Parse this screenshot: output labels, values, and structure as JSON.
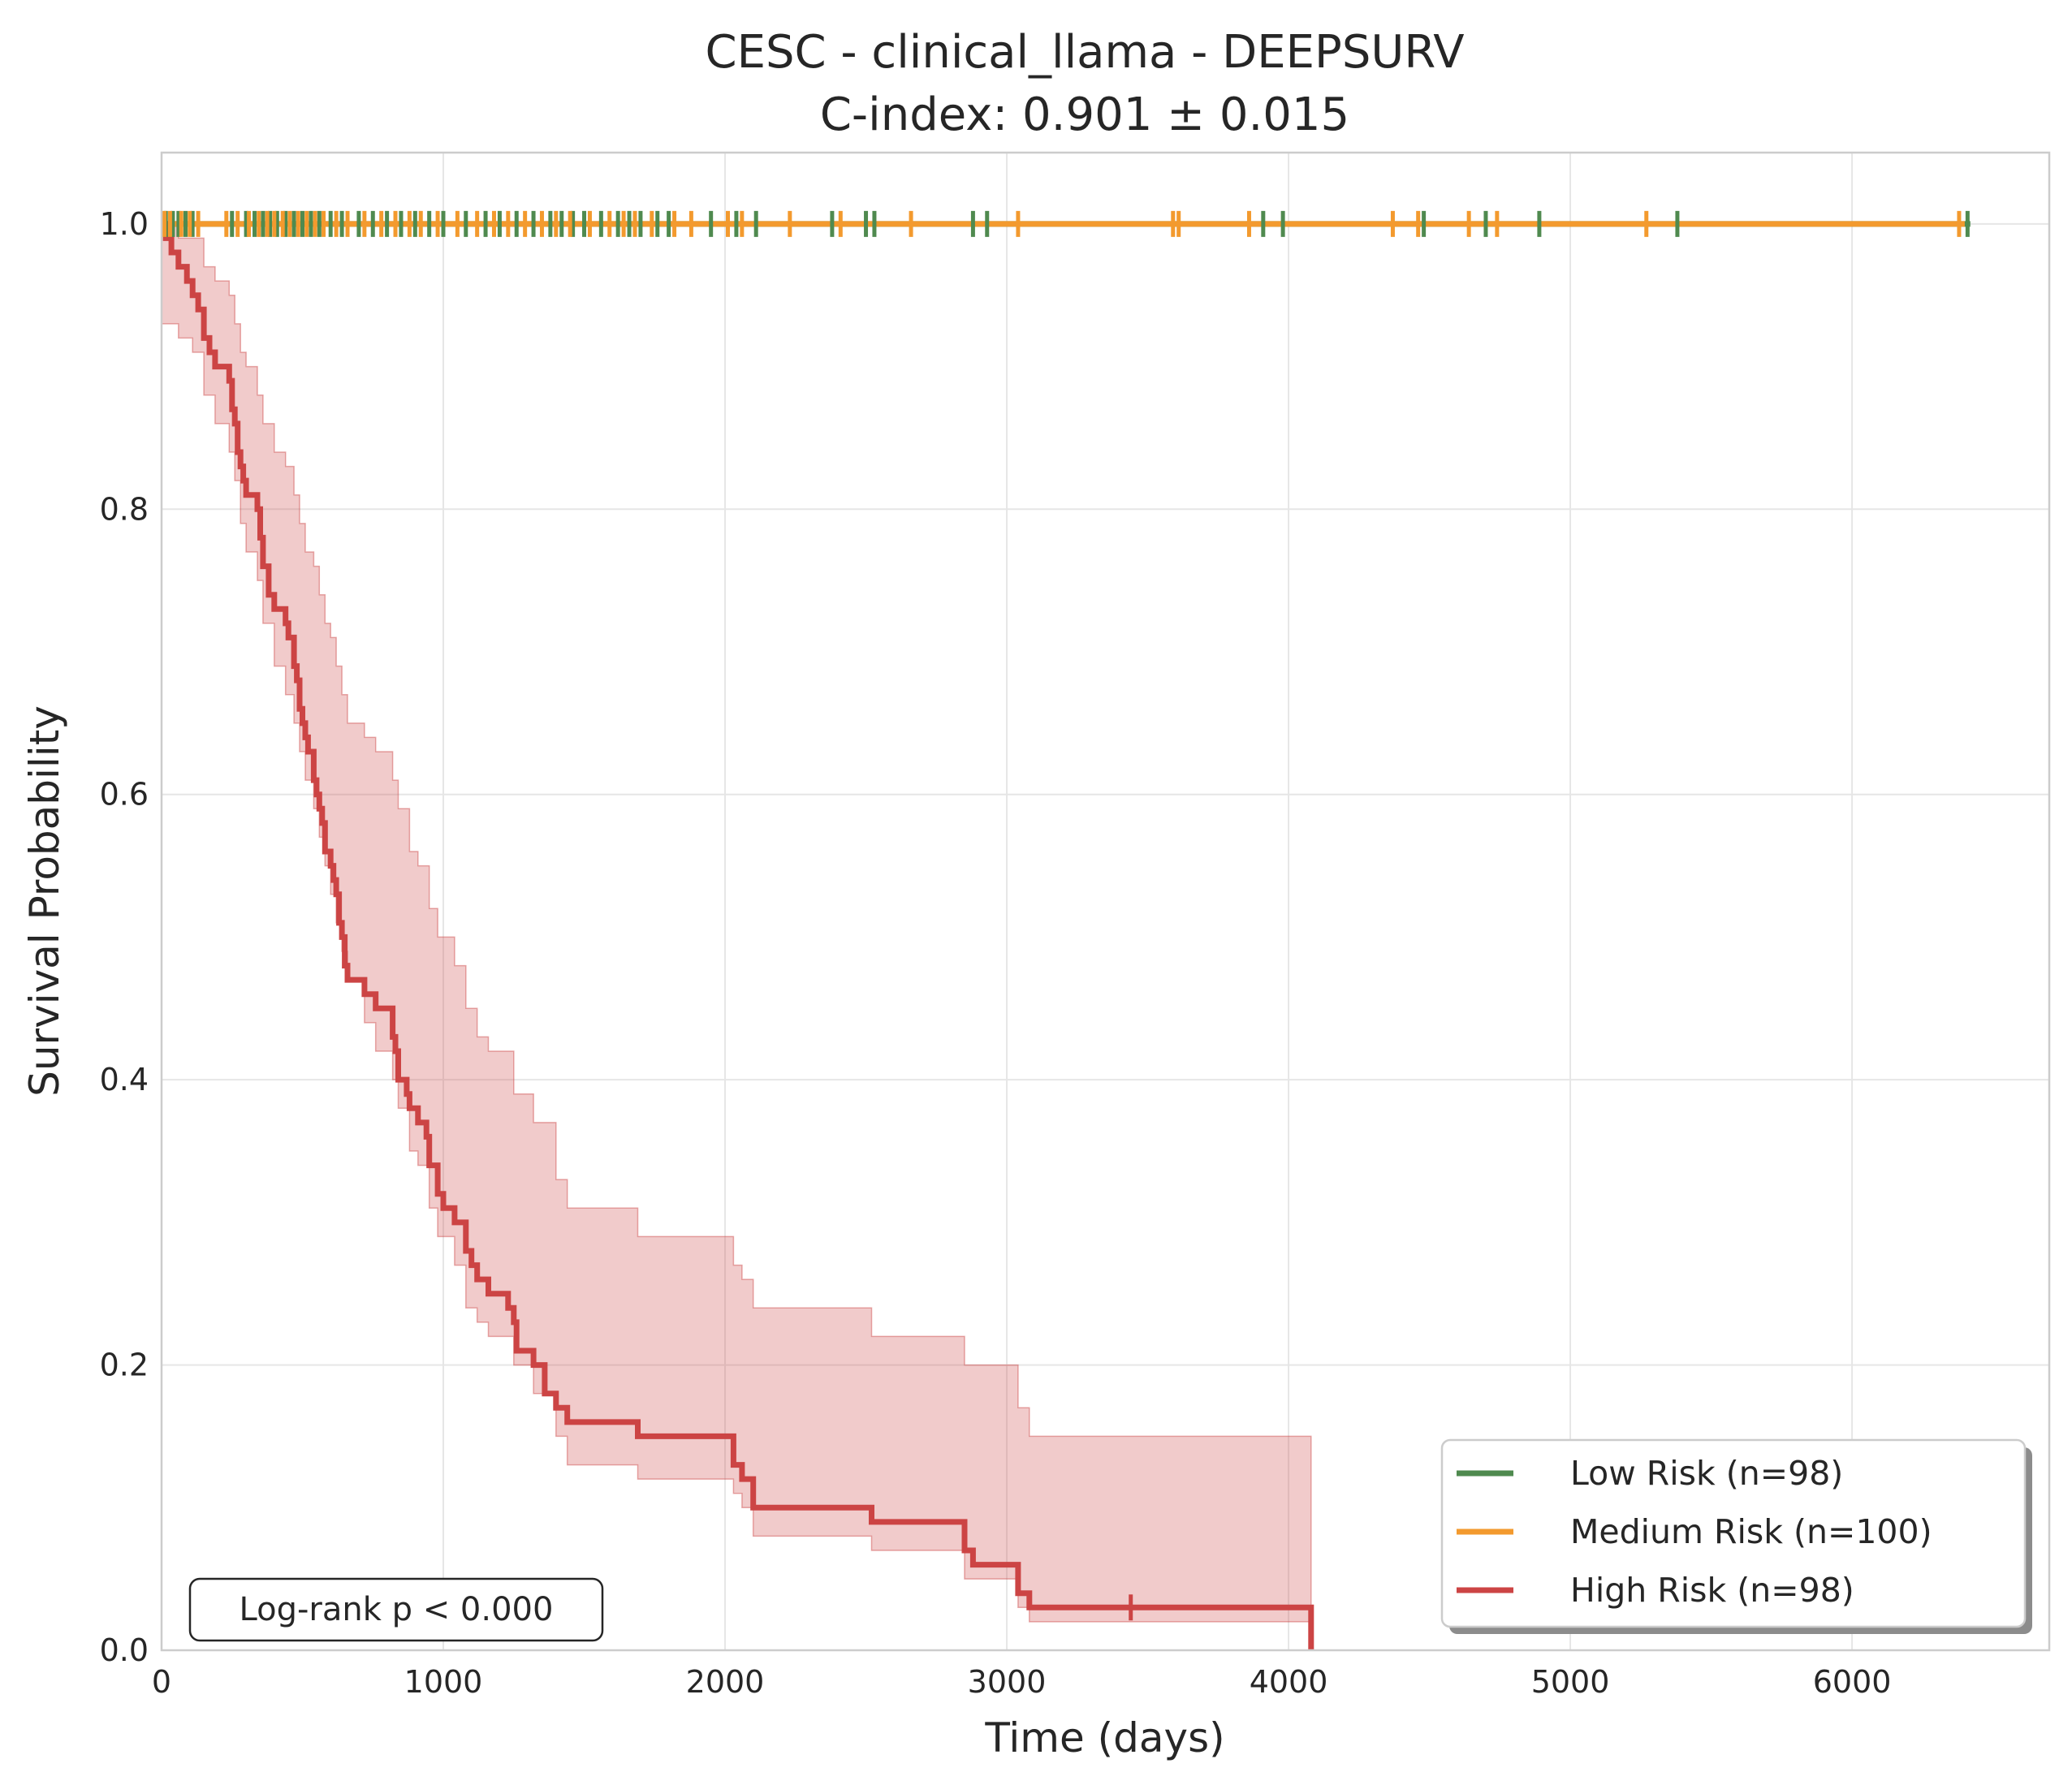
{
  "chart_data": {
    "type": "line",
    "title": "CESC - clinical_llama - DEEPSURV",
    "subtitle": "C-index: 0.901 ± 0.015",
    "xlabel": "Time (days)",
    "ylabel": "Survival Probability",
    "xlim": [
      0,
      6700
    ],
    "ylim": [
      0,
      1.05
    ],
    "x_ticks": [
      0,
      1000,
      2000,
      3000,
      4000,
      5000,
      6000
    ],
    "x_tick_labels": [
      "0",
      "1000",
      "2000",
      "3000",
      "4000",
      "5000",
      "6000"
    ],
    "y_ticks": [
      0.0,
      0.2,
      0.4,
      0.6,
      0.8,
      1.0
    ],
    "y_tick_labels": [
      "0.0",
      "0.2",
      "0.4",
      "0.6",
      "0.8",
      "1.0"
    ],
    "grid": true,
    "legend_position": "bottom-right",
    "annotation": "Log-rank p < 0.000",
    "series": [
      {
        "name": "Low Risk (n=98)",
        "color": "#4f8a4f",
        "steps": [
          [
            0,
            1.0
          ],
          [
            6420,
            1.0
          ]
        ],
        "censor_times": [
          15,
          40,
          60,
          85,
          110,
          250,
          300,
          330,
          360,
          385,
          410,
          440,
          470,
          500,
          530,
          560,
          600,
          640,
          700,
          750,
          800,
          850,
          900,
          950,
          1000,
          1080,
          1150,
          1200,
          1260,
          1320,
          1380,
          1420,
          1460,
          1500,
          1560,
          1620,
          1660,
          1700,
          1760,
          1800,
          1950,
          2040,
          2110,
          2380,
          2500,
          2530,
          2880,
          2930,
          3910,
          3980,
          4480,
          4700,
          4890,
          5380,
          6410
        ]
      },
      {
        "name": "Medium Risk (n=100)",
        "color": "#f39a2e",
        "steps": [
          [
            0,
            1.0
          ],
          [
            6400,
            1.0
          ]
        ],
        "censor_times": [
          10,
          30,
          70,
          100,
          130,
          230,
          270,
          310,
          345,
          375,
          400,
          430,
          455,
          485,
          515,
          545,
          575,
          620,
          660,
          720,
          780,
          830,
          880,
          920,
          980,
          1050,
          1120,
          1180,
          1230,
          1290,
          1350,
          1400,
          1450,
          1520,
          1590,
          1640,
          1680,
          1740,
          1820,
          1880,
          2010,
          2060,
          2230,
          2410,
          2660,
          3040,
          3590,
          3610,
          3860,
          4370,
          4460,
          4640,
          4740,
          5270,
          6380
        ]
      },
      {
        "name": "High Risk (n=98)",
        "color": "#cc4444",
        "steps": [
          [
            0,
            1.0
          ],
          [
            15,
            0.99
          ],
          [
            35,
            0.98
          ],
          [
            60,
            0.97
          ],
          [
            90,
            0.96
          ],
          [
            110,
            0.95
          ],
          [
            130,
            0.94
          ],
          [
            150,
            0.92
          ],
          [
            170,
            0.91
          ],
          [
            190,
            0.9
          ],
          [
            240,
            0.89
          ],
          [
            250,
            0.87
          ],
          [
            260,
            0.86
          ],
          [
            270,
            0.84
          ],
          [
            280,
            0.83
          ],
          [
            290,
            0.82
          ],
          [
            300,
            0.81
          ],
          [
            340,
            0.8
          ],
          [
            350,
            0.78
          ],
          [
            360,
            0.76
          ],
          [
            380,
            0.74
          ],
          [
            400,
            0.73
          ],
          [
            440,
            0.72
          ],
          [
            450,
            0.71
          ],
          [
            470,
            0.69
          ],
          [
            480,
            0.68
          ],
          [
            490,
            0.66
          ],
          [
            500,
            0.65
          ],
          [
            510,
            0.64
          ],
          [
            520,
            0.63
          ],
          [
            540,
            0.61
          ],
          [
            550,
            0.6
          ],
          [
            560,
            0.59
          ],
          [
            570,
            0.58
          ],
          [
            580,
            0.56
          ],
          [
            600,
            0.55
          ],
          [
            610,
            0.54
          ],
          [
            620,
            0.53
          ],
          [
            630,
            0.51
          ],
          [
            640,
            0.5
          ],
          [
            650,
            0.48
          ],
          [
            660,
            0.47
          ],
          [
            720,
            0.46
          ],
          [
            760,
            0.45
          ],
          [
            820,
            0.43
          ],
          [
            830,
            0.42
          ],
          [
            840,
            0.4
          ],
          [
            870,
            0.39
          ],
          [
            880,
            0.38
          ],
          [
            910,
            0.37
          ],
          [
            940,
            0.36
          ],
          [
            950,
            0.34
          ],
          [
            980,
            0.32
          ],
          [
            1000,
            0.31
          ],
          [
            1040,
            0.3
          ],
          [
            1080,
            0.28
          ],
          [
            1100,
            0.27
          ],
          [
            1120,
            0.26
          ],
          [
            1160,
            0.25
          ],
          [
            1230,
            0.24
          ],
          [
            1250,
            0.23
          ],
          [
            1260,
            0.21
          ],
          [
            1320,
            0.2
          ],
          [
            1360,
            0.18
          ],
          [
            1400,
            0.17
          ],
          [
            1440,
            0.16
          ],
          [
            1690,
            0.15
          ],
          [
            2030,
            0.13
          ],
          [
            2060,
            0.12
          ],
          [
            2100,
            0.1
          ],
          [
            2520,
            0.09
          ],
          [
            2850,
            0.07
          ],
          [
            2880,
            0.06
          ],
          [
            3040,
            0.04
          ],
          [
            3080,
            0.03
          ],
          [
            4080,
            0.0
          ]
        ],
        "censor_times": [
          3440
        ],
        "ci_upper": [
          [
            0,
            1.0
          ],
          [
            15,
            1.0
          ],
          [
            60,
            0.99
          ],
          [
            110,
            0.99
          ],
          [
            150,
            0.97
          ],
          [
            190,
            0.96
          ],
          [
            240,
            0.95
          ],
          [
            260,
            0.93
          ],
          [
            280,
            0.91
          ],
          [
            300,
            0.9
          ],
          [
            340,
            0.88
          ],
          [
            360,
            0.86
          ],
          [
            400,
            0.84
          ],
          [
            440,
            0.83
          ],
          [
            470,
            0.81
          ],
          [
            490,
            0.79
          ],
          [
            510,
            0.77
          ],
          [
            540,
            0.76
          ],
          [
            560,
            0.74
          ],
          [
            580,
            0.72
          ],
          [
            600,
            0.71
          ],
          [
            620,
            0.69
          ],
          [
            640,
            0.67
          ],
          [
            660,
            0.65
          ],
          [
            720,
            0.64
          ],
          [
            760,
            0.63
          ],
          [
            820,
            0.61
          ],
          [
            840,
            0.59
          ],
          [
            880,
            0.56
          ],
          [
            910,
            0.55
          ],
          [
            950,
            0.52
          ],
          [
            980,
            0.5
          ],
          [
            1040,
            0.48
          ],
          [
            1080,
            0.45
          ],
          [
            1120,
            0.43
          ],
          [
            1160,
            0.42
          ],
          [
            1250,
            0.39
          ],
          [
            1320,
            0.37
          ],
          [
            1400,
            0.33
          ],
          [
            1440,
            0.31
          ],
          [
            1690,
            0.29
          ],
          [
            2030,
            0.27
          ],
          [
            2060,
            0.26
          ],
          [
            2100,
            0.24
          ],
          [
            2520,
            0.22
          ],
          [
            2850,
            0.2
          ],
          [
            3040,
            0.17
          ],
          [
            3080,
            0.15
          ],
          [
            4080,
            0.09
          ]
        ],
        "ci_lower": [
          [
            0,
            0.93
          ],
          [
            15,
            0.93
          ],
          [
            60,
            0.92
          ],
          [
            110,
            0.91
          ],
          [
            150,
            0.88
          ],
          [
            190,
            0.86
          ],
          [
            240,
            0.84
          ],
          [
            260,
            0.82
          ],
          [
            280,
            0.79
          ],
          [
            300,
            0.77
          ],
          [
            340,
            0.75
          ],
          [
            360,
            0.72
          ],
          [
            400,
            0.69
          ],
          [
            440,
            0.67
          ],
          [
            470,
            0.65
          ],
          [
            490,
            0.63
          ],
          [
            510,
            0.61
          ],
          [
            540,
            0.59
          ],
          [
            560,
            0.57
          ],
          [
            580,
            0.55
          ],
          [
            600,
            0.53
          ],
          [
            620,
            0.51
          ],
          [
            640,
            0.49
          ],
          [
            660,
            0.47
          ],
          [
            720,
            0.44
          ],
          [
            760,
            0.42
          ],
          [
            820,
            0.4
          ],
          [
            840,
            0.38
          ],
          [
            880,
            0.35
          ],
          [
            910,
            0.34
          ],
          [
            950,
            0.31
          ],
          [
            980,
            0.29
          ],
          [
            1040,
            0.27
          ],
          [
            1080,
            0.24
          ],
          [
            1120,
            0.23
          ],
          [
            1160,
            0.22
          ],
          [
            1250,
            0.2
          ],
          [
            1320,
            0.18
          ],
          [
            1400,
            0.15
          ],
          [
            1440,
            0.13
          ],
          [
            1690,
            0.12
          ],
          [
            2030,
            0.11
          ],
          [
            2060,
            0.1
          ],
          [
            2100,
            0.08
          ],
          [
            2520,
            0.07
          ],
          [
            2850,
            0.05
          ],
          [
            3040,
            0.03
          ],
          [
            3080,
            0.02
          ],
          [
            4080,
            0.0
          ]
        ]
      }
    ]
  }
}
